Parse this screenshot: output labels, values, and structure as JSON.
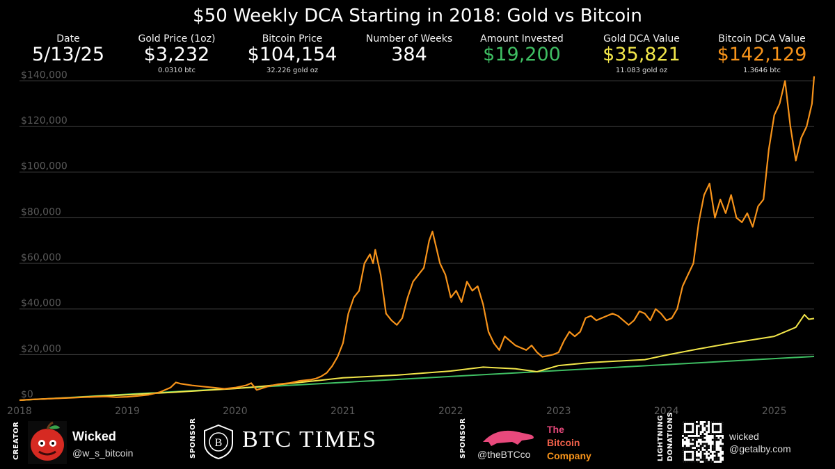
{
  "chart_data": {
    "type": "line",
    "title": "$50 Weekly DCA Starting in 2018: Gold vs Bitcoin",
    "xlabel": "",
    "ylabel": "",
    "xlim": [
      2018.0,
      2025.37
    ],
    "ylim": [
      0,
      145000
    ],
    "x_ticks": [
      "2018",
      "2019",
      "2020",
      "2021",
      "2022",
      "2023",
      "2024",
      "2025"
    ],
    "y_ticks": [
      "$0",
      "$20,000",
      "$40,000",
      "$60,000",
      "$80,000",
      "$100,000",
      "$120,000",
      "$140,000"
    ],
    "grid": "horizontal",
    "series": [
      {
        "name": "Bitcoin DCA Value",
        "color": "#f7931a",
        "x": [
          2018.0,
          2018.1,
          2018.2,
          2018.3,
          2018.4,
          2018.5,
          2018.6,
          2018.7,
          2018.8,
          2018.9,
          2019.0,
          2019.1,
          2019.2,
          2019.3,
          2019.4,
          2019.45,
          2019.5,
          2019.6,
          2019.7,
          2019.8,
          2019.9,
          2020.0,
          2020.1,
          2020.15,
          2020.2,
          2020.3,
          2020.4,
          2020.5,
          2020.6,
          2020.7,
          2020.75,
          2020.8,
          2020.85,
          2020.9,
          2020.95,
          2021.0,
          2021.05,
          2021.1,
          2021.15,
          2021.2,
          2021.25,
          2021.28,
          2021.3,
          2021.35,
          2021.4,
          2021.45,
          2021.5,
          2021.55,
          2021.6,
          2021.65,
          2021.7,
          2021.75,
          2021.8,
          2021.83,
          2021.87,
          2021.9,
          2021.95,
          2022.0,
          2022.05,
          2022.1,
          2022.15,
          2022.2,
          2022.25,
          2022.3,
          2022.35,
          2022.4,
          2022.45,
          2022.5,
          2022.55,
          2022.6,
          2022.65,
          2022.7,
          2022.75,
          2022.8,
          2022.85,
          2022.9,
          2022.95,
          2023.0,
          2023.05,
          2023.1,
          2023.15,
          2023.2,
          2023.25,
          2023.3,
          2023.35,
          2023.4,
          2023.45,
          2023.5,
          2023.55,
          2023.6,
          2023.65,
          2023.7,
          2023.75,
          2023.8,
          2023.85,
          2023.9,
          2023.95,
          2024.0,
          2024.05,
          2024.1,
          2024.15,
          2024.2,
          2024.25,
          2024.3,
          2024.35,
          2024.4,
          2024.45,
          2024.5,
          2024.55,
          2024.6,
          2024.65,
          2024.7,
          2024.75,
          2024.8,
          2024.85,
          2024.9,
          2024.95,
          2025.0,
          2025.05,
          2025.1,
          2025.15,
          2025.2,
          2025.25,
          2025.3,
          2025.35,
          2025.37
        ],
        "y": [
          0,
          300,
          500,
          700,
          900,
          1100,
          1300,
          1500,
          1600,
          1300,
          1500,
          1900,
          2400,
          3500,
          5500,
          7800,
          7200,
          6500,
          6000,
          5500,
          5000,
          5500,
          6500,
          7500,
          4500,
          6000,
          7000,
          7500,
          8500,
          9000,
          9500,
          10500,
          12000,
          15000,
          19000,
          25000,
          38000,
          45000,
          48000,
          60000,
          64000,
          60000,
          66000,
          55000,
          38000,
          35000,
          33000,
          36000,
          45000,
          52000,
          55000,
          58000,
          70000,
          74000,
          66000,
          60000,
          55000,
          45000,
          48000,
          43000,
          52000,
          48000,
          50000,
          42000,
          30000,
          25000,
          22000,
          28000,
          26000,
          24000,
          23000,
          22000,
          24000,
          21000,
          19000,
          19500,
          20000,
          21000,
          26000,
          30000,
          28000,
          30000,
          36000,
          37000,
          35000,
          36000,
          37000,
          38000,
          37000,
          35000,
          33000,
          35000,
          39000,
          38000,
          35000,
          40000,
          38000,
          35000,
          36000,
          40000,
          50000,
          55000,
          60000,
          78000,
          90000,
          95000,
          80000,
          88000,
          82000,
          90000,
          80000,
          78000,
          82000,
          76000,
          85000,
          88000,
          110000,
          125000,
          130000,
          140000,
          120000,
          105000,
          115000,
          120000,
          130000,
          142000
        ]
      },
      {
        "name": "Gold DCA Value",
        "color": "#f2e64a",
        "x": [
          2018.0,
          2018.5,
          2019.0,
          2019.5,
          2020.0,
          2020.3,
          2020.6,
          2020.8,
          2021.0,
          2021.5,
          2022.0,
          2022.3,
          2022.6,
          2022.8,
          2023.0,
          2023.3,
          2023.6,
          2023.8,
          2024.0,
          2024.3,
          2024.6,
          2024.8,
          2025.0,
          2025.2,
          2025.28,
          2025.32,
          2025.37
        ],
        "y": [
          0,
          1200,
          2400,
          3700,
          5100,
          6300,
          7800,
          8800,
          9800,
          11000,
          12800,
          14500,
          13800,
          12500,
          15200,
          16500,
          17300,
          17800,
          19800,
          22500,
          25000,
          26500,
          28000,
          32000,
          37500,
          35500,
          35821
        ]
      },
      {
        "name": "Amount Invested",
        "color": "#3fbf63",
        "x": [
          2018.0,
          2025.37
        ],
        "y": [
          0,
          19200
        ]
      }
    ]
  },
  "stats": [
    {
      "label": "Date",
      "value": "5/13/25",
      "sub": "",
      "color": "#ffffff"
    },
    {
      "label": "Gold Price (1oz)",
      "value": "$3,232",
      "sub": "0.0310 btc",
      "color": "#ffffff"
    },
    {
      "label": "Bitcoin Price",
      "value": "$104,154",
      "sub": "32.226 gold oz",
      "color": "#ffffff"
    },
    {
      "label": "Number of Weeks",
      "value": "384",
      "sub": "",
      "color": "#ffffff"
    },
    {
      "label": "Amount Invested",
      "value": "$19,200",
      "sub": "",
      "color": "#3fbf63"
    },
    {
      "label": "Gold DCA Value",
      "value": "$35,821",
      "sub": "11.083 gold oz",
      "color": "#f2e64a"
    },
    {
      "label": "Bitcoin DCA Value",
      "value": "$142,129",
      "sub": "1.3646 btc",
      "color": "#f7931a"
    }
  ],
  "footer": {
    "creator_label": "CREATOR",
    "creator_name": "Wicked",
    "creator_handle": "@w_s_bitcoin",
    "sponsor_label": "SPONSOR",
    "btc_times_name": "BTC TIMES",
    "btc_times_logo_letter": "B",
    "sponsor2_label": "SPONSOR",
    "bitcoin_company_handle": "@theBTCco",
    "bitcoin_company_line1": "The",
    "bitcoin_company_line2": "Bitcoin",
    "bitcoin_company_line3": "Company",
    "lightning_label1": "LIGHTNING",
    "lightning_label2": "DONATIONS",
    "lightning_name": "wicked",
    "lightning_address": "@getalby.com"
  }
}
